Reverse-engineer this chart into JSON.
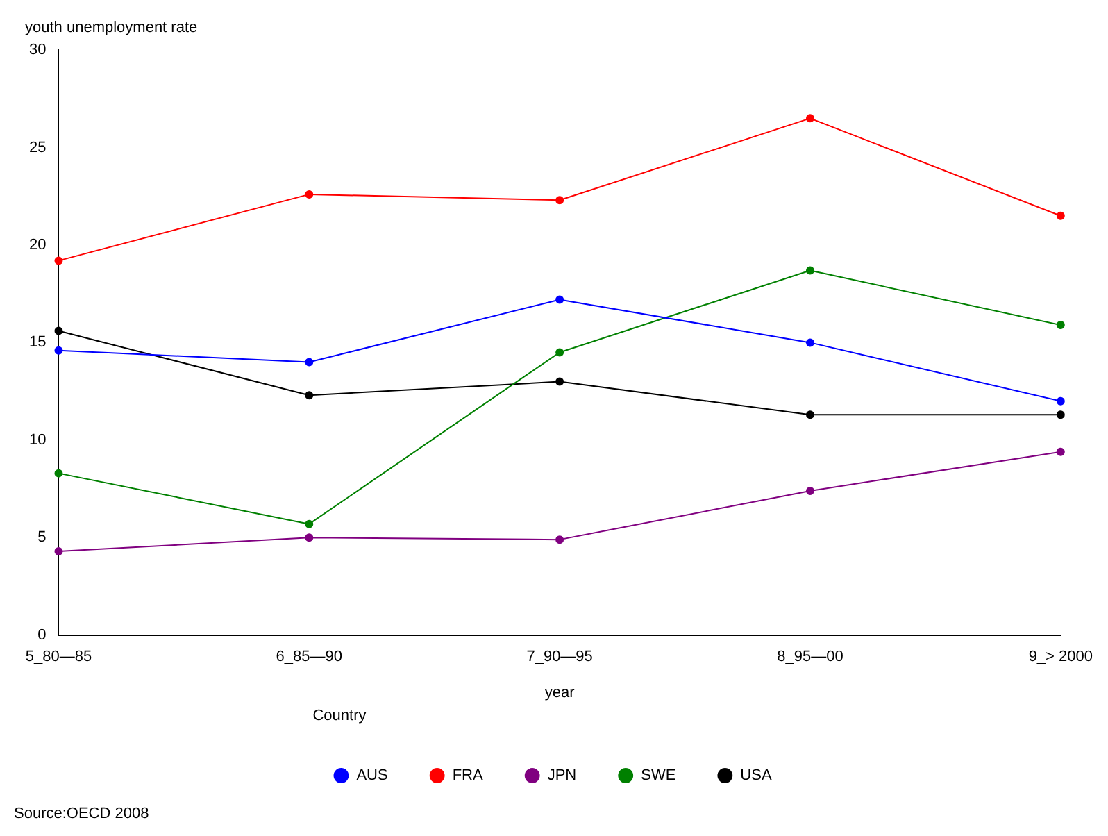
{
  "chart_data": {
    "type": "line",
    "ylabel": "youth unemployment rate",
    "xlabel": "year",
    "legend_title": "Country",
    "legend": "bottom",
    "marker": "circle",
    "grid": false,
    "categories": [
      "5_80—85",
      "6_85—90",
      "7_90—95",
      "8_95—00",
      "9_> 2000"
    ],
    "ylim": [
      0,
      30
    ],
    "yticks": [
      0,
      5,
      10,
      15,
      20,
      25,
      30
    ],
    "series": [
      {
        "name": "AUS",
        "color": "#0000ff",
        "values": [
          14.6,
          14.0,
          17.2,
          15.0,
          12.0
        ]
      },
      {
        "name": "FRA",
        "color": "#ff0000",
        "values": [
          19.2,
          22.6,
          22.3,
          26.5,
          21.5
        ]
      },
      {
        "name": "JPN",
        "color": "#800080",
        "values": [
          4.3,
          5.0,
          4.9,
          7.4,
          9.4
        ]
      },
      {
        "name": "SWE",
        "color": "#008000",
        "values": [
          8.3,
          5.7,
          14.5,
          18.7,
          15.9
        ]
      },
      {
        "name": "USA",
        "color": "#000000",
        "values": [
          15.6,
          12.3,
          13.0,
          11.3,
          11.3
        ]
      }
    ],
    "annotations": [
      "Source:OECD 2008"
    ]
  }
}
